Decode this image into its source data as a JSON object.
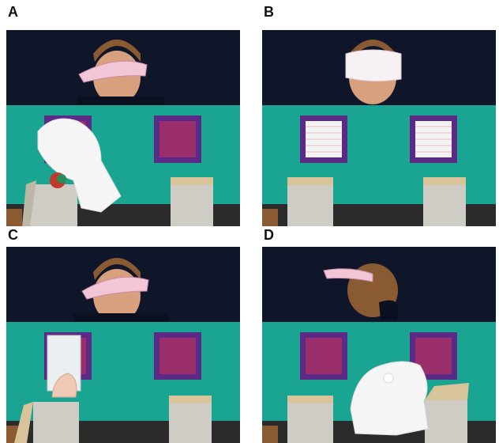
{
  "panels": [
    {
      "label": "A"
    },
    {
      "label": "B"
    },
    {
      "label": "C"
    },
    {
      "label": "D"
    }
  ],
  "colors": {
    "backdrop": "#0f1629",
    "screen": "#1aa592",
    "window_frame": "#5a2a86",
    "window_fill": "#9b2f6c",
    "visor": "#f2c6d6",
    "box": "#cfccc6",
    "floor": "#2b2b2b"
  }
}
